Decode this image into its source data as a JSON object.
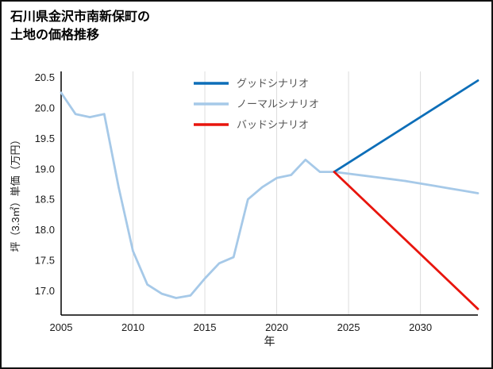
{
  "title": {
    "line1": "石川県金沢市南新保町の",
    "line2": "土地の価格推移"
  },
  "colors": {
    "grid": "#dddddd",
    "axis": "#000000",
    "tick_text": "#1a1a1a",
    "legend_text": "#555555"
  },
  "chart_data": {
    "type": "line",
    "title": "石川県金沢市南新保町の土地の価格推移",
    "xlabel": "年",
    "ylabel": "坪（3.3㎡）単価（万円）",
    "xlim": [
      2005,
      2034
    ],
    "ylim": [
      16.6,
      20.6
    ],
    "xticks": [
      2005,
      2010,
      2015,
      2020,
      2025,
      2030
    ],
    "yticks": [
      17.0,
      17.5,
      18.0,
      18.5,
      19.0,
      19.5,
      20.0,
      20.5
    ],
    "grid": "vertical",
    "legend_position": "top-center-inside",
    "legend_order": [
      "グッドシナリオ",
      "ノーマルシナリオ",
      "バッドシナリオ"
    ],
    "series": [
      {
        "name": "ノーマルシナリオ",
        "role": "historical-and-normal-projection",
        "color": "#a6c9e8",
        "x": [
          2005,
          2006,
          2007,
          2008,
          2009,
          2010,
          2011,
          2012,
          2013,
          2014,
          2015,
          2016,
          2017,
          2018,
          2019,
          2020,
          2021,
          2022,
          2023,
          2024,
          2025,
          2026,
          2027,
          2028,
          2029,
          2030,
          2031,
          2032,
          2033,
          2034
        ],
        "y": [
          20.25,
          19.9,
          19.85,
          19.9,
          18.7,
          17.65,
          17.1,
          16.95,
          16.88,
          16.92,
          17.2,
          17.45,
          17.55,
          18.5,
          18.7,
          18.85,
          18.9,
          19.15,
          18.95,
          18.95,
          18.92,
          18.89,
          18.86,
          18.83,
          18.8,
          18.76,
          18.72,
          18.68,
          18.64,
          18.6
        ]
      },
      {
        "name": "グッドシナリオ",
        "role": "good-projection",
        "color": "#0d6eb8",
        "x": [
          2024,
          2034
        ],
        "y": [
          18.95,
          20.45
        ]
      },
      {
        "name": "バッドシナリオ",
        "role": "bad-projection",
        "color": "#e8150d",
        "x": [
          2024,
          2034
        ],
        "y": [
          18.95,
          16.7
        ]
      }
    ]
  }
}
